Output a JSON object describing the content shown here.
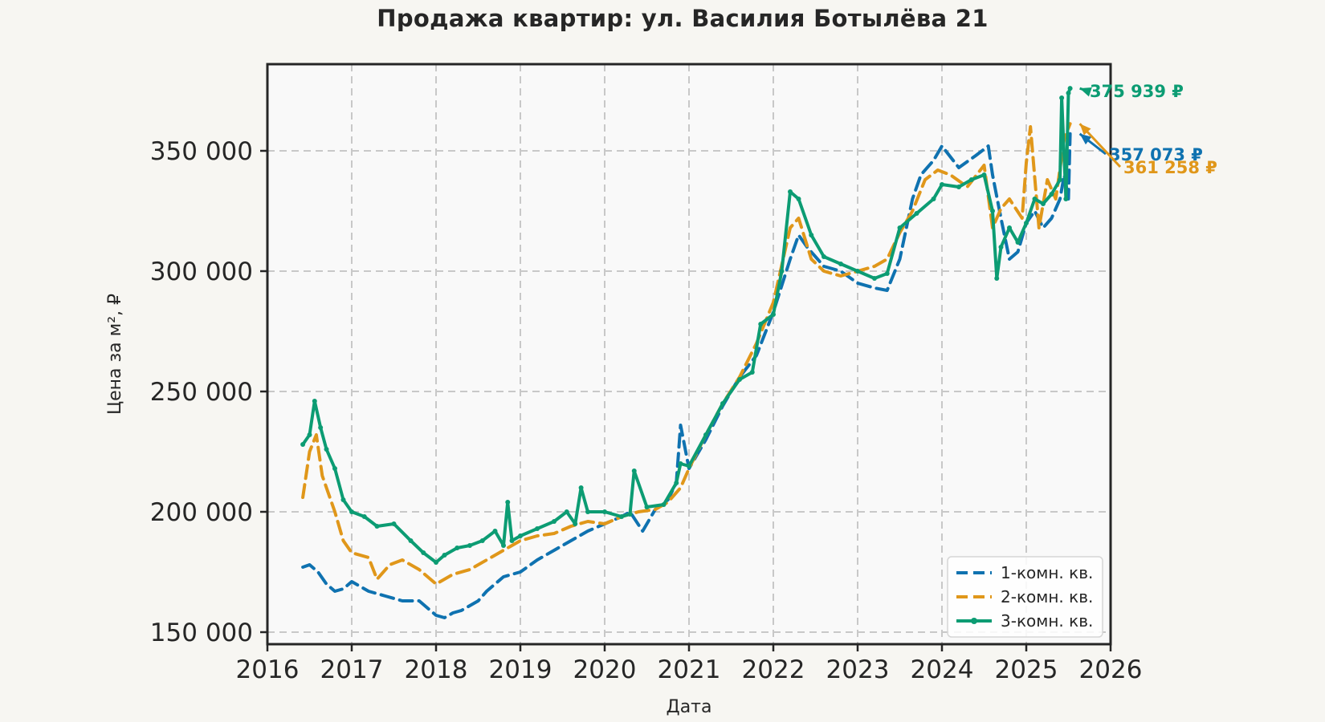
{
  "chart_data": {
    "type": "line",
    "title": "Продажа квартир: ул. Василия Ботылёва 21",
    "xlabel": "Дата",
    "ylabel": "Цена за м², ₽",
    "xlim": [
      2016,
      2026
    ],
    "ylim": [
      145000,
      386000
    ],
    "x_ticks": [
      2016,
      2017,
      2018,
      2019,
      2020,
      2021,
      2022,
      2023,
      2024,
      2025,
      2026
    ],
    "y_ticks": [
      150000,
      200000,
      250000,
      300000,
      350000
    ],
    "y_tick_labels": [
      "150 000",
      "200 000",
      "250 000",
      "300 000",
      "350 000"
    ],
    "grid": true,
    "legend_position": "lower-right",
    "series": [
      {
        "name": "1-комн. кв.",
        "color": "#0f72b0",
        "style": "dashed",
        "x": [
          2016.42,
          2016.5,
          2016.6,
          2016.7,
          2016.8,
          2016.9,
          2017.0,
          2017.2,
          2017.4,
          2017.6,
          2017.8,
          2018.0,
          2018.1,
          2018.2,
          2018.3,
          2018.5,
          2018.6,
          2018.8,
          2019.0,
          2019.2,
          2019.4,
          2019.6,
          2019.8,
          2020.0,
          2020.2,
          2020.3,
          2020.45,
          2020.6,
          2020.75,
          2020.85,
          2020.9,
          2021.0,
          2021.2,
          2021.4,
          2021.6,
          2021.8,
          2022.0,
          2022.2,
          2022.3,
          2022.4,
          2022.6,
          2022.8,
          2023.0,
          2023.2,
          2023.35,
          2023.5,
          2023.65,
          2023.75,
          2023.9,
          2024.0,
          2024.2,
          2024.4,
          2024.55,
          2024.6,
          2024.7,
          2024.8,
          2024.9,
          2025.0,
          2025.1,
          2025.2,
          2025.3,
          2025.4,
          2025.45,
          2025.5,
          2025.52
        ],
        "y": [
          177000,
          178000,
          175000,
          170000,
          167000,
          168000,
          171000,
          167000,
          165000,
          163000,
          163000,
          157000,
          156000,
          158000,
          159000,
          163000,
          167000,
          173000,
          175000,
          180000,
          184000,
          188000,
          192000,
          195000,
          198000,
          200000,
          192000,
          201000,
          205000,
          212000,
          236000,
          218000,
          230000,
          244000,
          256000,
          265000,
          283000,
          305000,
          315000,
          310000,
          302000,
          300000,
          295000,
          293000,
          292000,
          305000,
          330000,
          340000,
          346000,
          352000,
          343000,
          348000,
          352000,
          340000,
          322000,
          305000,
          308000,
          320000,
          325000,
          318000,
          322000,
          330000,
          340000,
          330000,
          357073
        ]
      },
      {
        "name": "2-комн. кв.",
        "color": "#e0971a",
        "style": "dashed",
        "x": [
          2016.42,
          2016.5,
          2016.58,
          2016.65,
          2016.8,
          2016.9,
          2017.0,
          2017.2,
          2017.3,
          2017.45,
          2017.6,
          2017.8,
          2018.0,
          2018.2,
          2018.4,
          2018.6,
          2018.8,
          2019.0,
          2019.2,
          2019.4,
          2019.6,
          2019.8,
          2020.0,
          2020.2,
          2020.4,
          2020.6,
          2020.75,
          2020.9,
          2021.0,
          2021.2,
          2021.4,
          2021.6,
          2021.8,
          2022.0,
          2022.2,
          2022.3,
          2022.45,
          2022.6,
          2022.8,
          2023.0,
          2023.2,
          2023.35,
          2023.5,
          2023.65,
          2023.8,
          2023.95,
          2024.1,
          2024.3,
          2024.5,
          2024.6,
          2024.7,
          2024.8,
          2024.95,
          2025.0,
          2025.05,
          2025.15,
          2025.25,
          2025.35,
          2025.45,
          2025.52
        ],
        "y": [
          206000,
          225000,
          232000,
          215000,
          200000,
          188000,
          183000,
          181000,
          172000,
          178000,
          180000,
          176000,
          170000,
          174000,
          176000,
          180000,
          184000,
          188000,
          190000,
          191000,
          194000,
          196000,
          195000,
          198000,
          200000,
          201000,
          204000,
          210000,
          218000,
          232000,
          245000,
          256000,
          270000,
          287000,
          318000,
          322000,
          305000,
          300000,
          298000,
          300000,
          302000,
          305000,
          316000,
          325000,
          338000,
          342000,
          340000,
          335000,
          344000,
          318000,
          326000,
          330000,
          322000,
          345000,
          360000,
          318000,
          338000,
          330000,
          355000,
          361258
        ]
      },
      {
        "name": "3-комн. кв.",
        "color": "#0c9c73",
        "style": "solid-markers",
        "x": [
          2016.42,
          2016.5,
          2016.56,
          2016.63,
          2016.7,
          2016.8,
          2016.9,
          2017.0,
          2017.15,
          2017.3,
          2017.5,
          2017.7,
          2017.85,
          2018.0,
          2018.1,
          2018.25,
          2018.4,
          2018.55,
          2018.7,
          2018.8,
          2018.85,
          2018.9,
          2019.0,
          2019.2,
          2019.4,
          2019.55,
          2019.65,
          2019.72,
          2019.8,
          2020.0,
          2020.2,
          2020.3,
          2020.35,
          2020.5,
          2020.7,
          2020.85,
          2020.9,
          2021.0,
          2021.2,
          2021.4,
          2021.6,
          2021.75,
          2021.85,
          2022.0,
          2022.1,
          2022.2,
          2022.3,
          2022.45,
          2022.6,
          2022.8,
          2023.0,
          2023.2,
          2023.35,
          2023.5,
          2023.7,
          2023.9,
          2024.0,
          2024.2,
          2024.35,
          2024.5,
          2024.6,
          2024.65,
          2024.7,
          2024.8,
          2024.9,
          2025.0,
          2025.1,
          2025.2,
          2025.3,
          2025.4,
          2025.42,
          2025.47,
          2025.5,
          2025.52
        ],
        "y": [
          228000,
          232000,
          246000,
          235000,
          226000,
          218000,
          205000,
          200000,
          198000,
          194000,
          195000,
          188000,
          183000,
          179000,
          182000,
          185000,
          186000,
          188000,
          192000,
          186000,
          204000,
          188000,
          190000,
          193000,
          196000,
          200000,
          195000,
          210000,
          200000,
          200000,
          198000,
          199000,
          217000,
          202000,
          203000,
          212000,
          220000,
          219000,
          232000,
          245000,
          255000,
          258000,
          278000,
          282000,
          300000,
          333000,
          330000,
          315000,
          306000,
          303000,
          300000,
          297000,
          299000,
          318000,
          324000,
          330000,
          336000,
          335000,
          338000,
          340000,
          325000,
          297000,
          310000,
          318000,
          312000,
          320000,
          330000,
          328000,
          332000,
          338000,
          372000,
          330000,
          374000,
          375939
        ]
      }
    ],
    "end_labels": [
      {
        "series": "3-комн. кв.",
        "text": "375 939 ₽",
        "color": "#0c9c73"
      },
      {
        "series": "1-комн. кв.",
        "text": "357 073 ₽",
        "color": "#0f72b0"
      },
      {
        "series": "2-комн. кв.",
        "text": "361 258 ₽",
        "color": "#e0971a"
      }
    ]
  }
}
